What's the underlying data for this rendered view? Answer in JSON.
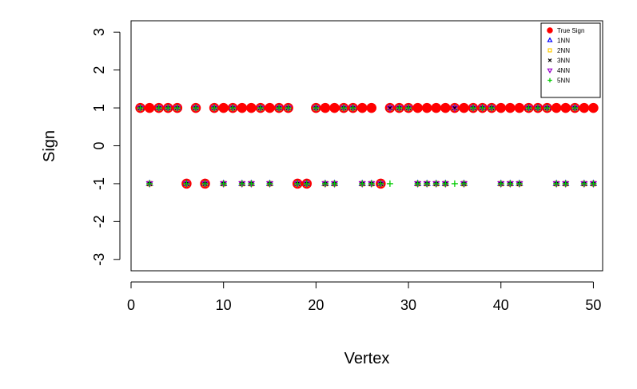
{
  "chart_data": {
    "type": "scatter",
    "title": "",
    "xlabel": "Vertex",
    "ylabel": "Sign",
    "xlim": [
      0,
      51
    ],
    "ylim": [
      -3.3,
      3.3
    ],
    "xticks": [
      0,
      10,
      20,
      30,
      40,
      50
    ],
    "yticks": [
      -3,
      -2,
      -1,
      0,
      1,
      2,
      3
    ],
    "grid": false,
    "legend_position": "top-right",
    "x": [
      1,
      2,
      3,
      4,
      5,
      6,
      7,
      8,
      9,
      10,
      11,
      12,
      13,
      14,
      15,
      16,
      17,
      18,
      19,
      20,
      21,
      22,
      23,
      24,
      25,
      26,
      27,
      28,
      29,
      30,
      31,
      32,
      33,
      34,
      35,
      36,
      37,
      38,
      39,
      40,
      41,
      42,
      43,
      44,
      45,
      46,
      47,
      48,
      49,
      50
    ],
    "series": [
      {
        "name": "True Sign",
        "marker": "filled-circle",
        "color": "#ff0000",
        "values": [
          1,
          1,
          1,
          1,
          1,
          -1,
          1,
          -1,
          1,
          1,
          1,
          1,
          1,
          1,
          1,
          1,
          1,
          -1,
          -1,
          1,
          1,
          1,
          1,
          1,
          1,
          1,
          -1,
          1,
          1,
          1,
          1,
          1,
          1,
          1,
          1,
          1,
          1,
          1,
          1,
          1,
          1,
          1,
          1,
          1,
          1,
          1,
          1,
          1,
          1,
          1
        ]
      },
      {
        "name": "1NN",
        "marker": "triangle-up",
        "color": "#0000ff",
        "values": [
          1,
          -1,
          1,
          1,
          1,
          -1,
          1,
          -1,
          1,
          -1,
          1,
          -1,
          -1,
          1,
          -1,
          1,
          1,
          -1,
          -1,
          1,
          -1,
          -1,
          1,
          1,
          -1,
          -1,
          -1,
          1,
          1,
          1,
          -1,
          -1,
          -1,
          -1,
          1,
          -1,
          1,
          1,
          1,
          -1,
          -1,
          -1,
          1,
          1,
          1,
          -1,
          -1,
          1,
          -1,
          -1
        ]
      },
      {
        "name": "2NN",
        "marker": "square",
        "color": "#ffcc00",
        "values": [
          1,
          -1,
          1,
          1,
          1,
          -1,
          1,
          -1,
          1,
          -1,
          1,
          -1,
          -1,
          1,
          -1,
          1,
          1,
          -1,
          -1,
          1,
          -1,
          -1,
          1,
          1,
          -1,
          -1,
          -1,
          1,
          1,
          1,
          -1,
          -1,
          -1,
          -1,
          1,
          -1,
          1,
          1,
          1,
          -1,
          -1,
          -1,
          1,
          1,
          1,
          -1,
          -1,
          1,
          -1,
          -1
        ]
      },
      {
        "name": "3NN",
        "marker": "x",
        "color": "#000000",
        "values": [
          1,
          -1,
          1,
          1,
          1,
          -1,
          1,
          -1,
          1,
          -1,
          1,
          -1,
          -1,
          1,
          -1,
          1,
          1,
          -1,
          -1,
          1,
          -1,
          -1,
          1,
          1,
          -1,
          -1,
          -1,
          1,
          1,
          1,
          -1,
          -1,
          -1,
          -1,
          1,
          -1,
          1,
          1,
          1,
          -1,
          -1,
          -1,
          1,
          1,
          1,
          -1,
          -1,
          1,
          -1,
          -1
        ]
      },
      {
        "name": "4NN",
        "marker": "triangle-down",
        "color": "#9900cc",
        "values": [
          1,
          -1,
          1,
          1,
          1,
          -1,
          1,
          -1,
          1,
          -1,
          1,
          -1,
          -1,
          1,
          -1,
          1,
          1,
          -1,
          -1,
          1,
          -1,
          -1,
          1,
          1,
          -1,
          -1,
          -1,
          1,
          1,
          1,
          -1,
          -1,
          -1,
          -1,
          1,
          -1,
          1,
          1,
          1,
          -1,
          -1,
          -1,
          1,
          1,
          1,
          -1,
          -1,
          1,
          -1,
          -1
        ]
      },
      {
        "name": "5NN",
        "marker": "plus",
        "color": "#00cc00",
        "values": [
          1,
          -1,
          1,
          1,
          1,
          -1,
          1,
          -1,
          1,
          -1,
          1,
          -1,
          -1,
          1,
          -1,
          1,
          1,
          -1,
          -1,
          1,
          -1,
          -1,
          1,
          1,
          -1,
          -1,
          -1,
          -1,
          1,
          1,
          -1,
          -1,
          -1,
          -1,
          -1,
          -1,
          1,
          1,
          1,
          -1,
          -1,
          -1,
          1,
          1,
          1,
          -1,
          -1,
          1,
          -1,
          -1
        ]
      }
    ]
  }
}
